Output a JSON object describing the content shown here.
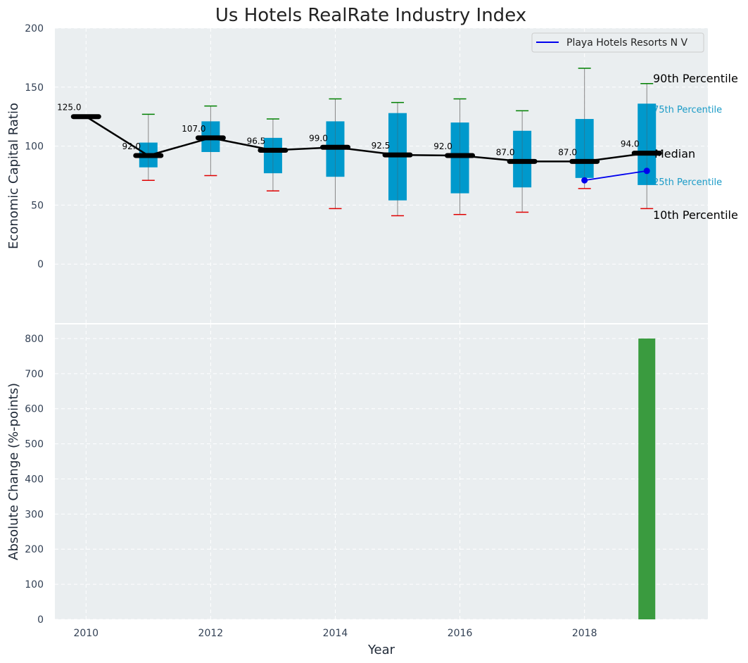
{
  "chart_data": [
    {
      "type": "box",
      "title": "Us Hotels RealRate Industry Index",
      "ylabel": "Economic Capital Ratio",
      "ylim": [
        -50,
        200
      ],
      "yticks": [
        0,
        50,
        100,
        150,
        200
      ],
      "xlim": [
        2009.5,
        2019.98
      ],
      "grid": true,
      "background": "#eaeef0",
      "box_color": "#0099cc",
      "whisker_top_color": "#008000",
      "whisker_bottom_color": "#e00000",
      "years": [
        2010,
        2011,
        2012,
        2013,
        2014,
        2015,
        2016,
        2017,
        2018,
        2019
      ],
      "median": [
        125.0,
        92.0,
        107.0,
        96.5,
        99.0,
        92.5,
        92.0,
        87.0,
        87.0,
        94.0
      ],
      "median_labels": [
        "125.0",
        "92.0",
        "107.0",
        "96.5",
        "99.0",
        "92.5",
        "92.0",
        "87.0",
        "87.0",
        "94.0"
      ],
      "p10": [
        null,
        71,
        75,
        62,
        47,
        41,
        42,
        44,
        64,
        47
      ],
      "p25": [
        null,
        82,
        95,
        77,
        74,
        54,
        60,
        65,
        73,
        67
      ],
      "p75": [
        null,
        103,
        121,
        107,
        121,
        128,
        120,
        113,
        123,
        136
      ],
      "p90": [
        null,
        127,
        134,
        123,
        140,
        137,
        140,
        130,
        166,
        153
      ],
      "series": [
        {
          "name": "Playa Hotels Resorts N V",
          "x": [
            2018,
            2019
          ],
          "values": [
            71,
            79
          ],
          "color": "#0000ee"
        }
      ],
      "annotations": {
        "p90": "90th Percentile",
        "p75": "75th Percentile",
        "median": "Median",
        "p25": "25th Percentile",
        "p10": "10th Percentile"
      },
      "legend": {
        "position": "top-right"
      }
    },
    {
      "type": "bar",
      "xlabel": "Year",
      "ylabel": "Absolute Change (%-points)",
      "ylim": [
        0,
        840
      ],
      "yticks": [
        0,
        100,
        200,
        300,
        400,
        500,
        600,
        700,
        800
      ],
      "xticks": [
        2010,
        2012,
        2014,
        2016,
        2018
      ],
      "x": [
        2019
      ],
      "values": [
        800
      ],
      "bar_color": "#3a9b3f",
      "grid": true,
      "background": "#eaeef0"
    }
  ]
}
